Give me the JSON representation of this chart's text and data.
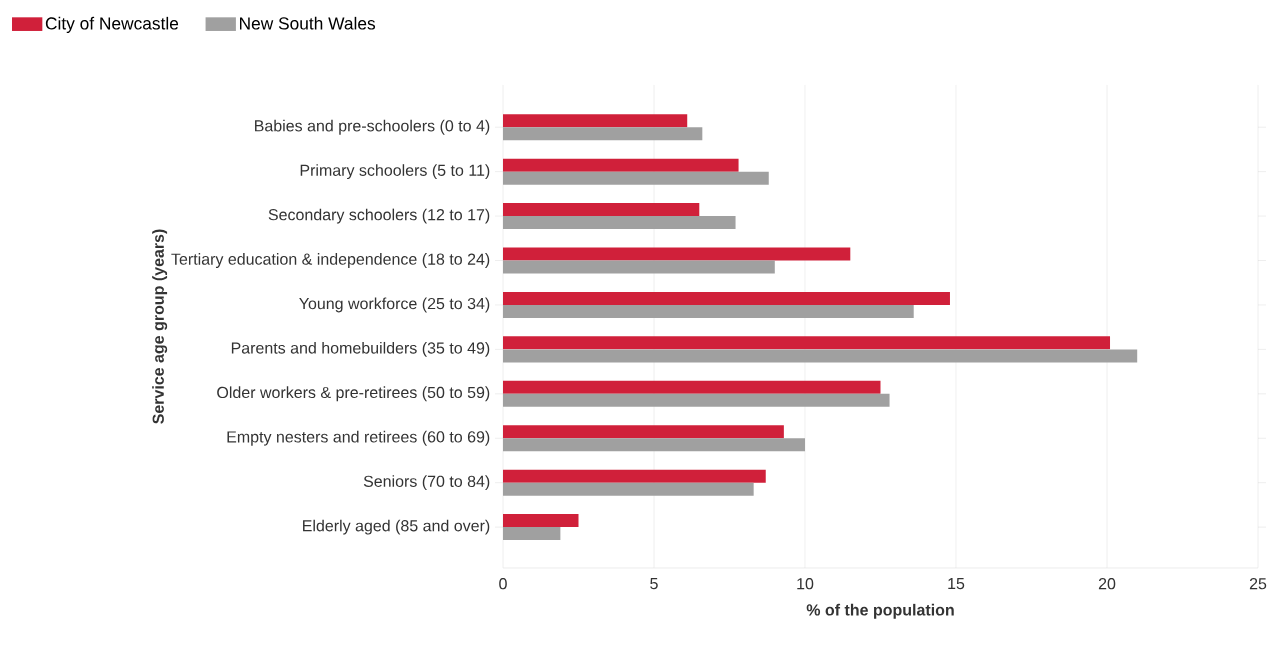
{
  "chart_data": {
    "type": "bar",
    "orientation": "horizontal",
    "xlabel": "% of the population",
    "ylabel": "Service age group (years)",
    "categories": [
      "Babies and pre-schoolers (0 to 4)",
      "Primary schoolers (5 to 11)",
      "Secondary schoolers (12 to 17)",
      "Tertiary education & independence (18 to 24)",
      "Young workforce (25 to 34)",
      "Parents and homebuilders (35 to 49)",
      "Older workers & pre-retirees (50 to 59)",
      "Empty nesters and retirees (60 to 69)",
      "Seniors (70 to 84)",
      "Elderly aged (85 and over)"
    ],
    "series": [
      {
        "name": "City of Newcastle",
        "color": "#d0203a",
        "values": [
          6.1,
          7.8,
          6.5,
          11.5,
          14.8,
          20.1,
          12.5,
          9.3,
          8.7,
          2.5
        ]
      },
      {
        "name": "New South Wales",
        "color": "#a0a0a0",
        "values": [
          6.6,
          8.8,
          7.7,
          9.0,
          13.6,
          21.0,
          12.8,
          10.0,
          8.3,
          1.9
        ]
      }
    ],
    "xlim": [
      0,
      25
    ],
    "xticks": [
      0,
      5,
      10,
      15,
      20,
      25
    ],
    "grid": "x",
    "legend": "top left"
  }
}
